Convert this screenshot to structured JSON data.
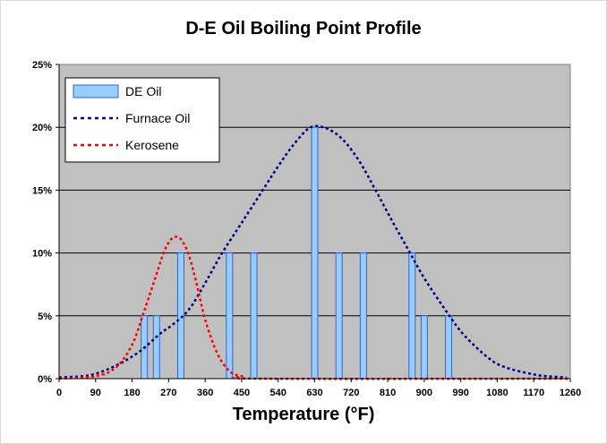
{
  "chart_data": {
    "type": "bar",
    "title": "D-E Oil Boiling Point Profile",
    "xlabel": "Temperature (°F)",
    "ylabel": "",
    "xlim": [
      0,
      1260
    ],
    "ylim": [
      0,
      25
    ],
    "x_ticks": [
      0,
      90,
      180,
      270,
      360,
      450,
      540,
      630,
      720,
      810,
      900,
      990,
      1080,
      1170,
      1260
    ],
    "y_ticks": [
      0,
      5,
      10,
      15,
      20,
      25
    ],
    "x_tick_labels": [
      "0",
      "90",
      "180",
      "270",
      "360",
      "450",
      "540",
      "630",
      "720",
      "810",
      "900",
      "990",
      "1080",
      "1170",
      "1260"
    ],
    "y_tick_labels": [
      "0%",
      "5%",
      "10%",
      "15%",
      "20%",
      "25%"
    ],
    "grid": "horizontal",
    "background": "#c0c0c0",
    "legend_position": "top-left",
    "legend": [
      "DE Oil",
      "Furnace Oil",
      "Kerosene"
    ],
    "series": [
      {
        "name": "DE Oil",
        "type": "bar",
        "color": "#99ccff",
        "points": [
          [
            210,
            5
          ],
          [
            240,
            5
          ],
          [
            300,
            10
          ],
          [
            420,
            10
          ],
          [
            480,
            10
          ],
          [
            630,
            20
          ],
          [
            690,
            10
          ],
          [
            750,
            10
          ],
          [
            870,
            10
          ],
          [
            900,
            5
          ],
          [
            960,
            5
          ]
        ]
      },
      {
        "name": "Furnace Oil",
        "type": "line",
        "style": "dotted",
        "color": "#000080",
        "points": [
          [
            0,
            0.1
          ],
          [
            60,
            0.2
          ],
          [
            100,
            0.5
          ],
          [
            150,
            1.2
          ],
          [
            200,
            2.2
          ],
          [
            250,
            3.6
          ],
          [
            280,
            4.3
          ],
          [
            320,
            5.5
          ],
          [
            360,
            7.6
          ],
          [
            400,
            9.9
          ],
          [
            450,
            12.4
          ],
          [
            500,
            14.9
          ],
          [
            540,
            16.9
          ],
          [
            580,
            18.7
          ],
          [
            620,
            20.0
          ],
          [
            660,
            19.9
          ],
          [
            700,
            19.0
          ],
          [
            740,
            17.3
          ],
          [
            780,
            15.0
          ],
          [
            820,
            12.6
          ],
          [
            860,
            10.3
          ],
          [
            900,
            8.0
          ],
          [
            960,
            5.1
          ],
          [
            1000,
            3.4
          ],
          [
            1060,
            1.6
          ],
          [
            1100,
            0.9
          ],
          [
            1160,
            0.4
          ],
          [
            1200,
            0.2
          ],
          [
            1250,
            0.1
          ]
        ]
      },
      {
        "name": "Kerosene",
        "type": "line",
        "style": "dotted",
        "color": "#ff0000",
        "points": [
          [
            0,
            0
          ],
          [
            90,
            0.2
          ],
          [
            140,
            0.9
          ],
          [
            180,
            2.7
          ],
          [
            210,
            5.4
          ],
          [
            240,
            8.3
          ],
          [
            260,
            10.2
          ],
          [
            280,
            11.2
          ],
          [
            300,
            11.1
          ],
          [
            320,
            9.8
          ],
          [
            340,
            7.4
          ],
          [
            360,
            4.7
          ],
          [
            390,
            2.0
          ],
          [
            420,
            0.6
          ],
          [
            450,
            0.2
          ],
          [
            500,
            0
          ],
          [
            1260,
            0
          ]
        ]
      }
    ]
  }
}
